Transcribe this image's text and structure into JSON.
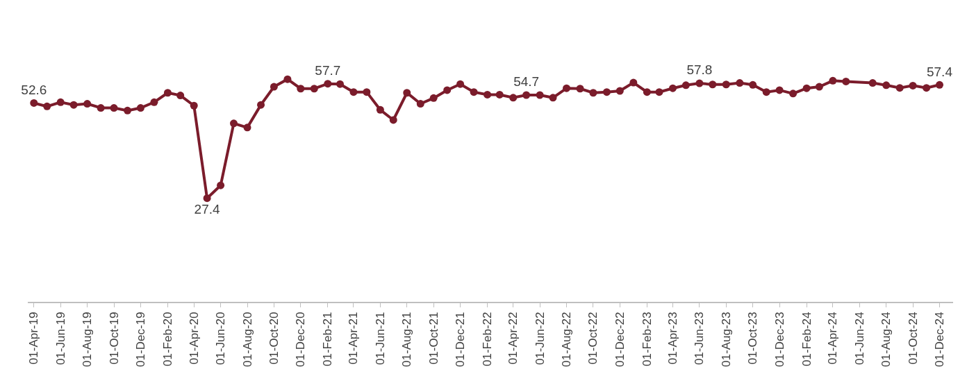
{
  "chart_data": {
    "type": "line",
    "x": [
      "2019-04",
      "2019-05",
      "2019-06",
      "2019-07",
      "2019-08",
      "2019-09",
      "2019-10",
      "2019-11",
      "2019-12",
      "2020-01",
      "2020-02",
      "2020-03",
      "2020-04",
      "2020-05",
      "2020-06",
      "2020-07",
      "2020-08",
      "2020-09",
      "2020-10",
      "2020-11",
      "2020-12",
      "2021-01",
      "2021-02",
      "2021-03",
      "2021-04",
      "2021-05",
      "2021-06",
      "2021-07",
      "2021-08",
      "2021-09",
      "2021-10",
      "2021-11",
      "2021-12",
      "2022-01",
      "2022-02",
      "2022-03",
      "2022-04",
      "2022-05",
      "2022-06",
      "2022-07",
      "2022-08",
      "2022-09",
      "2022-10",
      "2022-11",
      "2022-12",
      "2023-01",
      "2023-02",
      "2023-03",
      "2023-04",
      "2023-05",
      "2023-06",
      "2023-07",
      "2023-08",
      "2023-09",
      "2023-10",
      "2023-11",
      "2023-12",
      "2024-01",
      "2024-02",
      "2024-03",
      "2024-04",
      "2024-05",
      "2024-07",
      "2024-08",
      "2024-09",
      "2024-10",
      "2024-11",
      "2024-12"
    ],
    "series": [
      {
        "color": "#7b1c2b",
        "values": [
          52.6,
          51.7,
          52.8,
          52.1,
          52.4,
          51.3,
          51.3,
          50.6,
          51.3,
          52.8,
          55.3,
          54.6,
          51.9,
          27.4,
          30.8,
          47.2,
          46.1,
          52.1,
          56.9,
          58.9,
          56.4,
          56.4,
          57.7,
          57.6,
          55.5,
          55.5,
          50.8,
          48.1,
          55.3,
          52.4,
          53.9,
          56.0,
          57.6,
          55.5,
          54.8,
          54.8,
          54.0,
          54.7,
          54.7,
          54.0,
          56.5,
          56.4,
          55.3,
          55.5,
          55.8,
          58.0,
          55.5,
          55.5,
          56.5,
          57.3,
          57.8,
          57.5,
          57.5,
          57.9,
          57.4,
          55.5,
          56.0,
          55.1,
          56.5,
          56.9,
          58.5,
          58.3,
          57.9,
          57.3,
          56.6,
          57.2,
          56.6,
          57.4
        ],
        "value_labels": [
          "52.6",
          null,
          null,
          null,
          null,
          null,
          null,
          null,
          null,
          null,
          null,
          null,
          null,
          "27.4",
          null,
          null,
          null,
          null,
          null,
          null,
          null,
          null,
          "57.7",
          null,
          null,
          null,
          null,
          null,
          null,
          null,
          null,
          null,
          null,
          null,
          null,
          null,
          null,
          "54.7",
          null,
          null,
          null,
          null,
          null,
          null,
          null,
          null,
          null,
          null,
          null,
          null,
          "57.8",
          null,
          null,
          null,
          null,
          null,
          null,
          null,
          null,
          null,
          null,
          null,
          null,
          null,
          null,
          null,
          null,
          "57.4"
        ]
      }
    ],
    "xlim": [
      "2019-03-18",
      "2025-01-01"
    ],
    "xticks": [
      {
        "value": "2019-04-01",
        "label": "01-Apr-19"
      },
      {
        "value": "2019-06-01",
        "label": "01-Jun-19"
      },
      {
        "value": "2019-08-01",
        "label": "01-Aug-19"
      },
      {
        "value": "2019-10-01",
        "label": "01-Oct-19"
      },
      {
        "value": "2019-12-01",
        "label": "01-Dec-19"
      },
      {
        "value": "2020-02-01",
        "label": "01-Feb-20"
      },
      {
        "value": "2020-04-01",
        "label": "01-Apr-20"
      },
      {
        "value": "2020-06-01",
        "label": "01-Jun-20"
      },
      {
        "value": "2020-08-01",
        "label": "01-Aug-20"
      },
      {
        "value": "2020-10-01",
        "label": "01-Oct-20"
      },
      {
        "value": "2020-12-01",
        "label": "01-Dec-20"
      },
      {
        "value": "2021-02-01",
        "label": "01-Feb-21"
      },
      {
        "value": "2021-04-01",
        "label": "01-Apr-21"
      },
      {
        "value": "2021-06-01",
        "label": "01-Jun-21"
      },
      {
        "value": "2021-08-01",
        "label": "01-Aug-21"
      },
      {
        "value": "2021-10-01",
        "label": "01-Oct-21"
      },
      {
        "value": "2021-12-01",
        "label": "01-Dec-21"
      },
      {
        "value": "2022-02-01",
        "label": "01-Feb-22"
      },
      {
        "value": "2022-04-01",
        "label": "01-Apr-22"
      },
      {
        "value": "2022-06-01",
        "label": "01-Jun-22"
      },
      {
        "value": "2022-08-01",
        "label": "01-Aug-22"
      },
      {
        "value": "2022-10-01",
        "label": "01-Oct-22"
      },
      {
        "value": "2022-12-01",
        "label": "01-Dec-22"
      },
      {
        "value": "2023-02-01",
        "label": "01-Feb-23"
      },
      {
        "value": "2023-04-01",
        "label": "01-Apr-23"
      },
      {
        "value": "2023-06-01",
        "label": "01-Jun-23"
      },
      {
        "value": "2023-08-01",
        "label": "01-Aug-23"
      },
      {
        "value": "2023-10-01",
        "label": "01-Oct-23"
      },
      {
        "value": "2023-12-01",
        "label": "01-Dec-23"
      },
      {
        "value": "2024-02-01",
        "label": "01-Feb-24"
      },
      {
        "value": "2024-04-01",
        "label": "01-Apr-24"
      },
      {
        "value": "2024-06-01",
        "label": "01-Jun-24"
      },
      {
        "value": "2024-08-01",
        "label": "01-Aug-24"
      },
      {
        "value": "2024-10-01",
        "label": "01-Oct-24"
      },
      {
        "value": "2024-12-01",
        "label": "01-Dec-24"
      }
    ],
    "tick_labels": "x",
    "marker": "circle",
    "line_style": "solid"
  }
}
